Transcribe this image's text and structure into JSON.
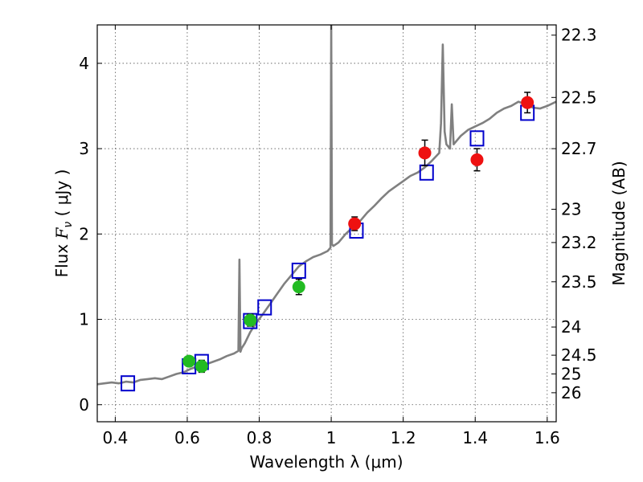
{
  "chart_data": {
    "type": "scatter",
    "xlabel": "Wavelength  λ (μm)",
    "ylabel_left_prefix": "Flux  ",
    "ylabel_left_symbol": "F",
    "ylabel_left_sub": "ν",
    "ylabel_left_suffix": "  ( μJy )",
    "ylabel_right": "Magnitude (AB)",
    "xlim": [
      0.35,
      1.625
    ],
    "ylim": [
      -0.2,
      4.45
    ],
    "grid": true,
    "x_ticks": [
      0.4,
      0.6,
      0.8,
      1.0,
      1.2,
      1.4,
      1.6
    ],
    "x_tick_labels": [
      "0.4",
      "0.6",
      "0.8",
      "1",
      "1.2",
      "1.4",
      "1.6"
    ],
    "y_ticks": [
      0,
      1,
      2,
      3,
      4
    ],
    "y_tick_labels": [
      "0",
      "1",
      "2",
      "3",
      "4"
    ],
    "right_ticks": [
      {
        "label": "22.3",
        "flux": 4.33
      },
      {
        "label": "22.5",
        "flux": 3.6
      },
      {
        "label": "22.7",
        "flux": 3.0
      },
      {
        "label": "23",
        "flux": 2.29
      },
      {
        "label": "23.2",
        "flux": 1.9
      },
      {
        "label": "23.5",
        "flux": 1.44
      },
      {
        "label": "24",
        "flux": 0.91
      },
      {
        "label": "24.5",
        "flux": 0.58
      },
      {
        "label": "25",
        "flux": 0.36
      },
      {
        "label": "26",
        "flux": 0.14
      }
    ],
    "colors": {
      "model": "#808080",
      "synthetic": "#0000cc",
      "green": "#22bb22",
      "red": "#ee1111",
      "grid": "#555555"
    },
    "series": [
      {
        "kind": "line",
        "x": [
          0.35,
          0.37,
          0.39,
          0.41,
          0.43,
          0.45,
          0.47,
          0.49,
          0.51,
          0.53,
          0.55,
          0.57,
          0.59,
          0.61,
          0.63,
          0.65,
          0.67,
          0.69,
          0.71,
          0.73,
          0.742,
          0.745,
          0.748,
          0.751,
          0.76,
          0.775,
          0.79,
          0.81,
          0.83,
          0.85,
          0.87,
          0.89,
          0.91,
          0.93,
          0.95,
          0.97,
          0.99,
          0.998,
          1.0,
          1.002,
          1.006,
          1.02,
          1.04,
          1.06,
          1.08,
          1.1,
          1.12,
          1.14,
          1.16,
          1.18,
          1.2,
          1.22,
          1.24,
          1.26,
          1.28,
          1.3,
          1.305,
          1.31,
          1.315,
          1.32,
          1.33,
          1.335,
          1.34,
          1.35,
          1.36,
          1.38,
          1.4,
          1.42,
          1.44,
          1.46,
          1.48,
          1.5,
          1.52,
          1.54,
          1.56,
          1.58,
          1.6,
          1.625
        ],
        "y": [
          0.24,
          0.25,
          0.26,
          0.25,
          0.27,
          0.26,
          0.29,
          0.3,
          0.31,
          0.3,
          0.33,
          0.36,
          0.38,
          0.42,
          0.45,
          0.47,
          0.5,
          0.53,
          0.57,
          0.6,
          0.63,
          1.7,
          0.62,
          0.66,
          0.72,
          0.85,
          0.95,
          1.06,
          1.18,
          1.3,
          1.42,
          1.52,
          1.62,
          1.68,
          1.73,
          1.76,
          1.8,
          1.84,
          4.45,
          1.88,
          1.86,
          1.9,
          2.0,
          2.08,
          2.15,
          2.25,
          2.33,
          2.42,
          2.5,
          2.56,
          2.62,
          2.68,
          2.72,
          2.78,
          2.86,
          2.95,
          3.3,
          4.22,
          3.2,
          3.05,
          3.0,
          3.52,
          3.05,
          3.1,
          3.15,
          3.22,
          3.26,
          3.3,
          3.35,
          3.42,
          3.47,
          3.5,
          3.55,
          3.52,
          3.48,
          3.47,
          3.5,
          3.55
        ]
      },
      {
        "kind": "squares",
        "x": [
          0.435,
          0.605,
          0.64,
          0.775,
          0.815,
          0.91,
          1.07,
          1.265,
          1.405,
          1.545
        ],
        "y": [
          0.25,
          0.45,
          0.5,
          0.98,
          1.14,
          1.57,
          2.04,
          2.72,
          3.12,
          3.42
        ]
      },
      {
        "kind": "points",
        "color_key": "green",
        "x": [
          0.605,
          0.64,
          0.775,
          0.91
        ],
        "y": [
          0.51,
          0.45,
          0.99,
          1.38
        ],
        "err": [
          0.05,
          0.07,
          0.07,
          0.09
        ]
      },
      {
        "kind": "points",
        "color_key": "red",
        "x": [
          1.065,
          1.26,
          1.405,
          1.545
        ],
        "y": [
          2.12,
          2.95,
          2.87,
          3.54
        ],
        "err": [
          0.08,
          0.15,
          0.13,
          0.12
        ]
      }
    ]
  }
}
